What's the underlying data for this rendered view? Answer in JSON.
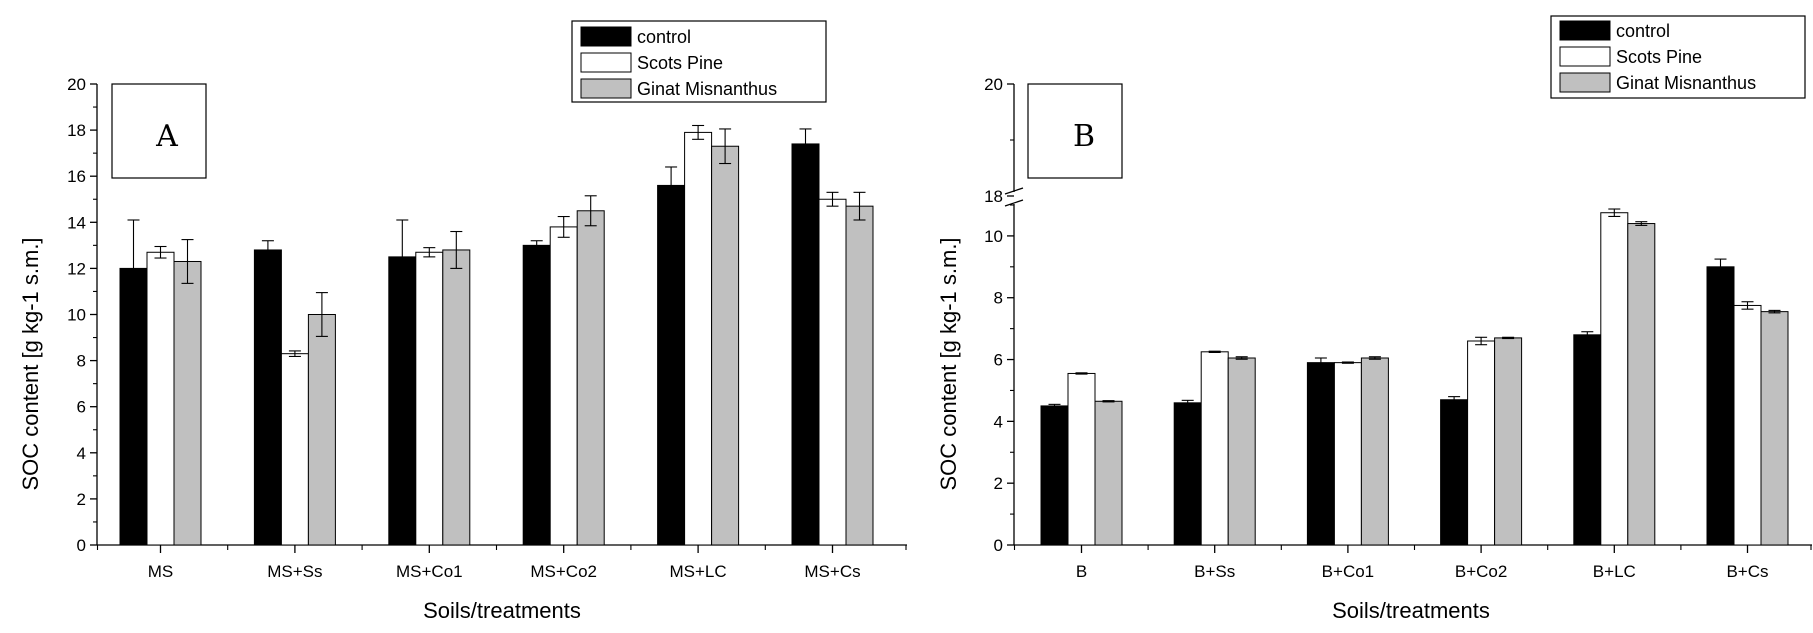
{
  "chart_data": [
    {
      "panel": "A",
      "type": "bar",
      "xlabel": "Soils/treatments",
      "ylabel": "SOC content [g kg-1 s.m.]",
      "ylim": [
        0,
        20
      ],
      "yticks": [
        "0",
        "2",
        "4",
        "6",
        "8",
        "10",
        "12",
        "14",
        "16",
        "18",
        "20"
      ],
      "categories": [
        "MS",
        "MS+Ss",
        "MS+Co1",
        "MS+Co2",
        "MS+LC",
        "MS+Cs"
      ],
      "legend_position": "top-center",
      "series": [
        {
          "name": "control",
          "color": "#000000",
          "values": [
            12.0,
            12.8,
            12.5,
            13.0,
            15.6,
            17.4
          ],
          "errors": [
            2.1,
            0.4,
            1.6,
            0.2,
            0.8,
            0.65
          ]
        },
        {
          "name": "Scots Pine",
          "color": "#ffffff",
          "values": [
            12.7,
            8.3,
            12.7,
            13.8,
            17.9,
            15.0
          ],
          "errors": [
            0.25,
            0.12,
            0.2,
            0.45,
            0.3,
            0.3
          ]
        },
        {
          "name": "Ginat Misnanthus",
          "color": "#c0c0c0",
          "values": [
            12.3,
            10.0,
            12.8,
            14.5,
            17.3,
            14.7
          ],
          "errors": [
            0.95,
            0.95,
            0.8,
            0.65,
            0.75,
            0.6
          ]
        }
      ]
    },
    {
      "panel": "B",
      "type": "bar",
      "xlabel": "Soils/treatments",
      "ylabel": "SOC content [g kg-1 s.m.]",
      "ylim": [
        0,
        20
      ],
      "axis_break": [
        12,
        18
      ],
      "yticks": [
        "0",
        "2",
        "4",
        "6",
        "8",
        "10",
        "18",
        "20"
      ],
      "categories": [
        "B",
        "B+Ss",
        "B+Co1",
        "B+Co2",
        "B+LC",
        "B+Cs"
      ],
      "legend_position": "top-right",
      "series": [
        {
          "name": "control",
          "color": "#000000",
          "values": [
            4.5,
            4.6,
            5.9,
            4.7,
            6.8,
            9.0
          ],
          "errors": [
            0.05,
            0.08,
            0.15,
            0.1,
            0.1,
            0.25
          ]
        },
        {
          "name": "Scots Pine",
          "color": "#ffffff",
          "values": [
            5.55,
            6.25,
            5.9,
            6.6,
            10.75,
            7.75
          ],
          "errors": [
            0.02,
            0.02,
            0.02,
            0.12,
            0.12,
            0.12
          ]
        },
        {
          "name": "Ginat Misnanthus",
          "color": "#c0c0c0",
          "values": [
            4.65,
            6.05,
            6.05,
            6.7,
            10.4,
            7.55
          ],
          "errors": [
            0.02,
            0.04,
            0.04,
            0.02,
            0.06,
            0.04
          ]
        }
      ]
    }
  ]
}
